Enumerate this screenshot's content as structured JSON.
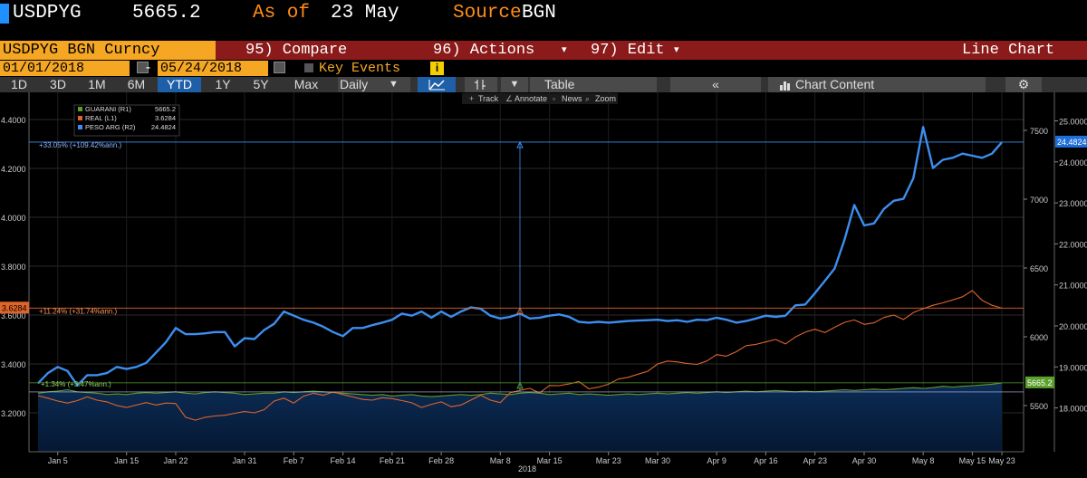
{
  "header": {
    "ticker": "USDPYG",
    "price": "5665.2",
    "as_of_label": "As of",
    "as_of_date": "23 May",
    "source_label": "Source",
    "source_value": "BGN",
    "accent_color": "#1e90ff"
  },
  "menu": {
    "security": "USDPYG BGN Curncy",
    "compare": "95) Compare",
    "actions": "96) Actions",
    "actions_caret": "▾",
    "edit": "97) Edit",
    "edit_caret": "▾",
    "chart_type": "Line Chart"
  },
  "dates": {
    "start": "01/01/2018",
    "end": "05/24/2018",
    "dash": "-",
    "key_events": "Key Events",
    "info": "i"
  },
  "toolbar": {
    "periods": [
      "1D",
      "3D",
      "1M",
      "6M",
      "YTD",
      "1Y",
      "5Y",
      "Max"
    ],
    "active_period": "YTD",
    "frequency": "Daily",
    "frequency_caret": "▼",
    "table_caret": "▼",
    "table": "Table",
    "collapse": "«",
    "chart_content": "Chart Content",
    "gear": "⚙"
  },
  "chart_tools": {
    "track": "Track",
    "annotate": "Annotate",
    "news": "News",
    "zoom": "Zoom"
  },
  "legend": [
    {
      "name": "GUARANI (R1)",
      "value": "5665.2",
      "color": "#5aa02c"
    },
    {
      "name": "REAL (L1)",
      "value": "3.6284",
      "color": "#e0652a"
    },
    {
      "name": "PESO ARG (R2)",
      "value": "24.4824",
      "color": "#3d8ef0"
    }
  ],
  "annotations": {
    "peso_change": "+33.05% (+109.42%ann.)",
    "real_change": "+11.24% (+31.74%ann.)",
    "guarani_change": "+1.34% (+3.47%ann.)",
    "left_last": "3.6284",
    "r1_last": "5665.2",
    "r2_last": "24.4824"
  },
  "chart_data": {
    "type": "line",
    "x_labels": [
      "Jan 5",
      "Jan 15",
      "Jan 22",
      "Jan 31",
      "Feb 7",
      "Feb 14",
      "Feb 21",
      "Feb 28",
      "Mar 8",
      "Mar 15",
      "Mar 23",
      "Mar 30",
      "Apr 9",
      "Apr 16",
      "Apr 23",
      "Apr 30",
      "May 8",
      "May 15",
      "May 23"
    ],
    "year_label": "2018",
    "left_axis": {
      "ticks": [
        "4.4000",
        "4.2000",
        "4.0000",
        "3.8000",
        "3.6000",
        "3.4000",
        "3.2000"
      ],
      "range": [
        3.1,
        4.5
      ]
    },
    "right1_axis": {
      "ticks": [
        "7500",
        "7000",
        "6500",
        "6000",
        "5500"
      ],
      "range": [
        5300,
        7900
      ]
    },
    "right2_axis": {
      "ticks": [
        "25.0000",
        "24.0000",
        "23.0000",
        "22.0000",
        "21.0000",
        "20.0000",
        "19.0000",
        "18.0000"
      ],
      "range": [
        17.4,
        25.3
      ]
    },
    "series": [
      {
        "name": "PESO ARG (R2)",
        "axis": "right2",
        "color": "#3d8ef0",
        "values": [
          18.6,
          18.85,
          19.0,
          18.9,
          18.55,
          18.8,
          18.8,
          18.85,
          19.0,
          18.95,
          19.0,
          19.1,
          19.35,
          19.6,
          19.95,
          19.8,
          19.8,
          19.82,
          19.85,
          19.85,
          19.5,
          19.7,
          19.68,
          19.9,
          20.05,
          20.35,
          20.25,
          20.15,
          20.08,
          19.98,
          19.85,
          19.75,
          19.95,
          19.95,
          20.02,
          20.08,
          20.15,
          20.3,
          20.25,
          20.35,
          20.2,
          20.35,
          20.22,
          20.35,
          20.45,
          20.42,
          20.25,
          20.18,
          20.22,
          20.3,
          20.18,
          20.2,
          20.25,
          20.28,
          20.22,
          20.1,
          20.08,
          20.1,
          20.08,
          20.1,
          20.12,
          20.13,
          20.14,
          20.15,
          20.12,
          20.14,
          20.1,
          20.15,
          20.14,
          20.2,
          20.15,
          20.08,
          20.12,
          20.18,
          20.25,
          20.22,
          20.25,
          20.5,
          20.52,
          20.8,
          21.1,
          21.4,
          22.1,
          22.95,
          22.45,
          22.5,
          22.85,
          23.05,
          23.1,
          23.6,
          24.85,
          23.85,
          24.05,
          24.1,
          24.2,
          24.15,
          24.1,
          24.2,
          24.48
        ]
      },
      {
        "name": "REAL (L1)",
        "axis": "left",
        "color": "#e0652a",
        "values": [
          3.27,
          3.26,
          3.248,
          3.24,
          3.25,
          3.265,
          3.252,
          3.245,
          3.23,
          3.222,
          3.232,
          3.242,
          3.232,
          3.24,
          3.238,
          3.182,
          3.17,
          3.182,
          3.187,
          3.19,
          3.198,
          3.205,
          3.2,
          3.213,
          3.248,
          3.26,
          3.24,
          3.268,
          3.28,
          3.272,
          3.285,
          3.275,
          3.265,
          3.255,
          3.252,
          3.262,
          3.258,
          3.25,
          3.241,
          3.222,
          3.235,
          3.245,
          3.225,
          3.232,
          3.252,
          3.272,
          3.252,
          3.242,
          3.282,
          3.292,
          3.3,
          3.281,
          3.312,
          3.311,
          3.318,
          3.328,
          3.298,
          3.305,
          3.317,
          3.338,
          3.345,
          3.358,
          3.37,
          3.4,
          3.412,
          3.408,
          3.402,
          3.398,
          3.412,
          3.438,
          3.432,
          3.45,
          3.475,
          3.48,
          3.49,
          3.5,
          3.482,
          3.51,
          3.53,
          3.542,
          3.528,
          3.55,
          3.57,
          3.58,
          3.562,
          3.568,
          3.59,
          3.6,
          3.582,
          3.61,
          3.626,
          3.64,
          3.65,
          3.662,
          3.675,
          3.7,
          3.66,
          3.64,
          3.628
        ]
      },
      {
        "name": "GUARANI (R1)",
        "axis": "right1",
        "color": "#5aa02c",
        "values": [
          5590,
          5600,
          5605,
          5615,
          5600,
          5595,
          5590,
          5580,
          5585,
          5580,
          5590,
          5595,
          5590,
          5595,
          5600,
          5590,
          5585,
          5595,
          5600,
          5595,
          5590,
          5580,
          5585,
          5590,
          5590,
          5600,
          5595,
          5600,
          5605,
          5600,
          5595,
          5590,
          5585,
          5580,
          5575,
          5580,
          5570,
          5575,
          5580,
          5570,
          5565,
          5570,
          5575,
          5580,
          5575,
          5580,
          5590,
          5585,
          5580,
          5590,
          5595,
          5590,
          5580,
          5585,
          5590,
          5580,
          5585,
          5580,
          5575,
          5580,
          5585,
          5580,
          5585,
          5590,
          5585,
          5590,
          5595,
          5590,
          5595,
          5600,
          5595,
          5600,
          5605,
          5600,
          5605,
          5610,
          5605,
          5600,
          5605,
          5600,
          5605,
          5610,
          5615,
          5610,
          5615,
          5620,
          5615,
          5620,
          5625,
          5630,
          5625,
          5630,
          5640,
          5635,
          5640,
          5645,
          5650,
          5655,
          5665
        ]
      }
    ]
  }
}
